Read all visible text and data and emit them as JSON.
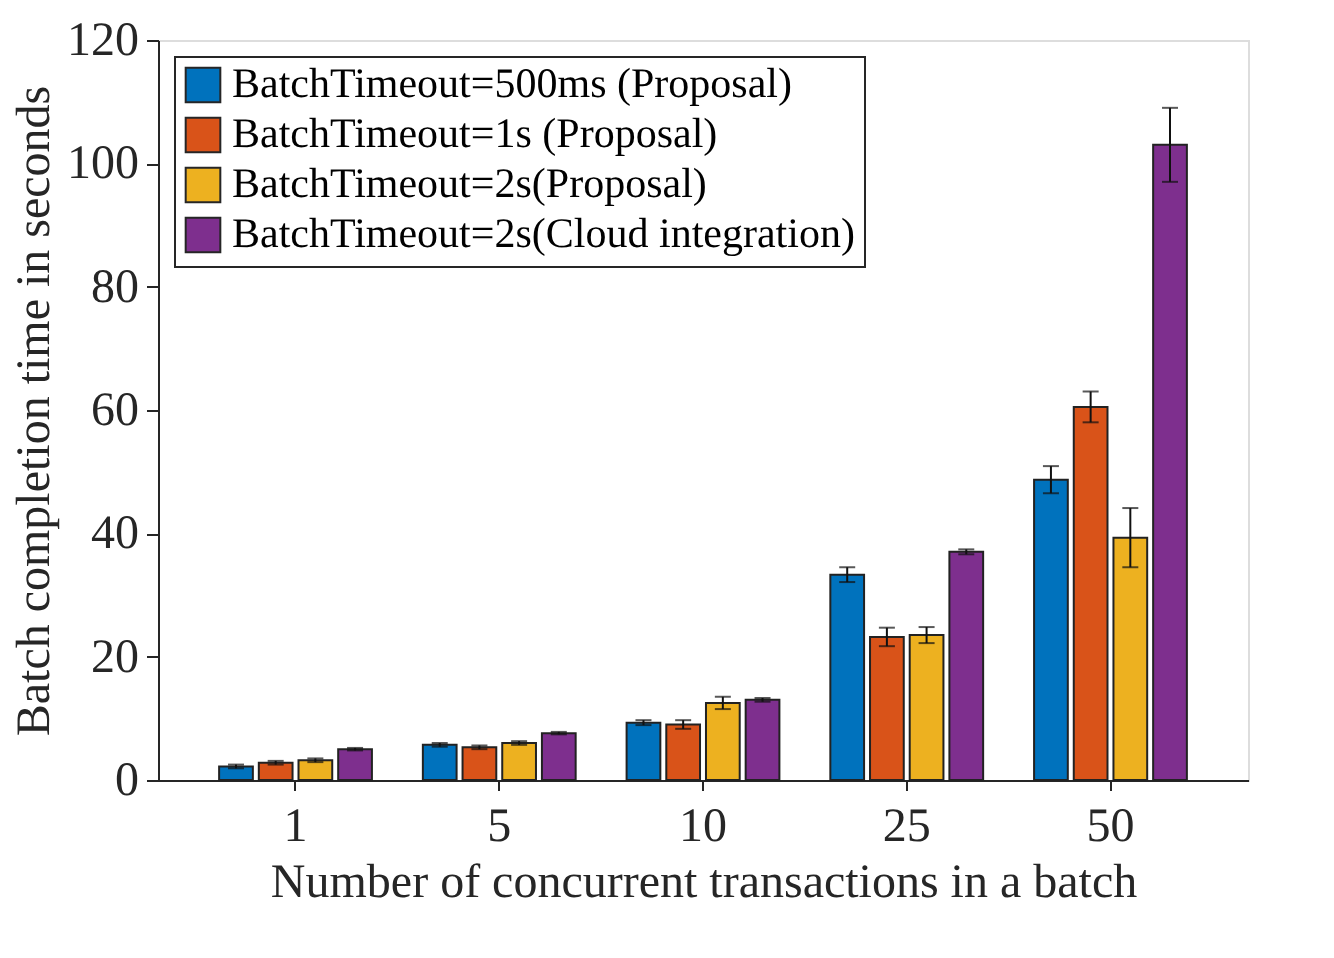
{
  "chart_data": {
    "type": "bar",
    "xlabel": "Number of concurrent transactions in a batch",
    "ylabel": "Batch completion time  in seconds",
    "categories": [
      "1",
      "5",
      "10",
      "25",
      "50"
    ],
    "series": [
      {
        "name": "BatchTimeout=500ms (Proposal)",
        "color": "#0072bd",
        "values": [
          2.2,
          5.7,
          9.3,
          33.3,
          48.7
        ],
        "errors": [
          0.3,
          0.3,
          0.4,
          1.2,
          2.2
        ]
      },
      {
        "name": "BatchTimeout=1s (Proposal)",
        "color": "#d95319",
        "values": [
          2.8,
          5.3,
          9.0,
          23.2,
          60.5
        ],
        "errors": [
          0.3,
          0.3,
          0.7,
          1.5,
          2.5
        ]
      },
      {
        "name": "BatchTimeout=2s(Proposal)",
        "color": "#edb120",
        "values": [
          3.2,
          6.0,
          12.5,
          23.5,
          39.3
        ],
        "errors": [
          0.3,
          0.3,
          1.0,
          1.3,
          4.8
        ]
      },
      {
        "name": "BatchTimeout=2s(Cloud integration)",
        "color": "#7e2f8e",
        "values": [
          5.0,
          7.6,
          13.0,
          37.0,
          103.0
        ],
        "errors": [
          0.2,
          0.2,
          0.3,
          0.4,
          6.0
        ]
      }
    ],
    "ylim": [
      0,
      120
    ],
    "yticks": [
      0,
      20,
      40,
      60,
      80,
      100,
      120
    ],
    "grid": false,
    "legend": "top left"
  }
}
